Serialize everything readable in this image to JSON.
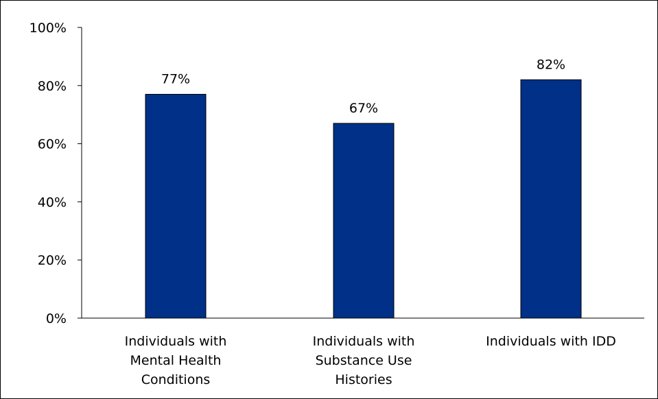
{
  "chart_data": {
    "type": "bar",
    "categories": [
      [
        "Individuals with",
        "Mental Health",
        "Conditions"
      ],
      [
        "Individuals with",
        "Substance Use",
        "Histories"
      ],
      [
        "Individuals with IDD"
      ]
    ],
    "values": [
      77,
      67,
      82
    ],
    "data_labels": [
      "77%",
      "67%",
      "82%"
    ],
    "y_ticks": [
      0,
      20,
      40,
      60,
      80,
      100
    ],
    "y_tick_labels": [
      "0%",
      "20%",
      "40%",
      "60%",
      "80%",
      "100%"
    ],
    "ylim": [
      0,
      100
    ],
    "grid": false,
    "legend": "none",
    "bar_color": "#003087",
    "axis_color": "#000000"
  }
}
